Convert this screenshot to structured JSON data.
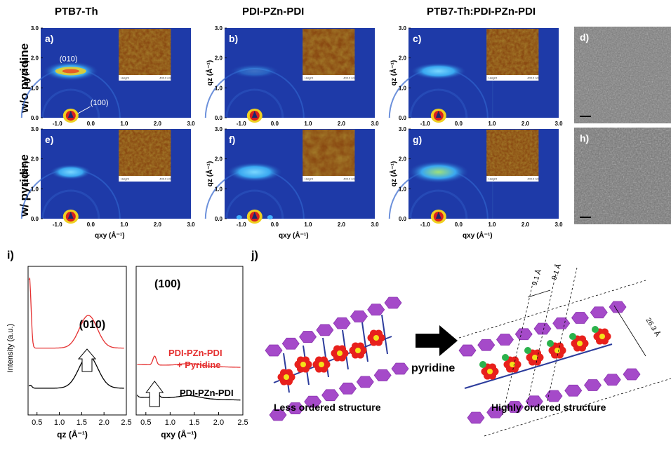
{
  "column_titles": [
    "PTB7-Th",
    "PDI-PZn-PDI",
    "PTB7-Th:PDI-PZn-PDI"
  ],
  "row_labels": [
    "w/o pyridine",
    "w/ pyridine"
  ],
  "panel_labels": [
    "a)",
    "b)",
    "c)",
    "d)",
    "e)",
    "f)",
    "g)",
    "h)"
  ],
  "gixd": {
    "y_ticks": [
      "3.0",
      "2.0",
      "1.0",
      "0.0"
    ],
    "x_ticks": [
      "-1.0",
      "0.0",
      "1.0",
      "2.0",
      "3.0"
    ],
    "x_axis_label": "qxy (Å⁻¹)",
    "y_axis_label": "qz (Å⁻¹)",
    "peak_010": "(010)",
    "peak_100": "(100)",
    "afm_height_label": "Height",
    "afm_scale_label": "400.0 nm"
  },
  "panel_i": {
    "label": "i)",
    "ylabel": "Intensity (a.u.)",
    "left": {
      "xlabel": "qz (Å⁻¹)",
      "x_ticks": [
        "0.5",
        "1.0",
        "1.5",
        "2.0",
        "2.5"
      ],
      "peak_label": "(010)"
    },
    "right": {
      "xlabel": "qxy (Å⁻¹)",
      "x_ticks": [
        "0.5",
        "1.0",
        "1.5",
        "2.0",
        "2.5"
      ],
      "peak_label": "(100)",
      "series_red": "PDI-PZn-PDI",
      "series_red_sub": "+ Pyridine",
      "series_black": "PDI-PZn-PDI"
    }
  },
  "panel_j": {
    "label": "j)",
    "arrow_label": "pyridine",
    "left_caption": "Less ordered structure",
    "right_caption": "Highly  ordered structure",
    "spacing_1": "9.1 Å",
    "spacing_2": "9.1 Å",
    "spacing_3": "26.3 Å"
  },
  "colors": {
    "map_bg": "#1e3aa8",
    "ring": "#3fb0ff",
    "red_curve": "#e53030",
    "polymer": "#a54ac9",
    "pdi": "#e8201c",
    "core": "#f4e21a",
    "pyridine": "#2bb24c",
    "linker": "#2c3c9c"
  }
}
